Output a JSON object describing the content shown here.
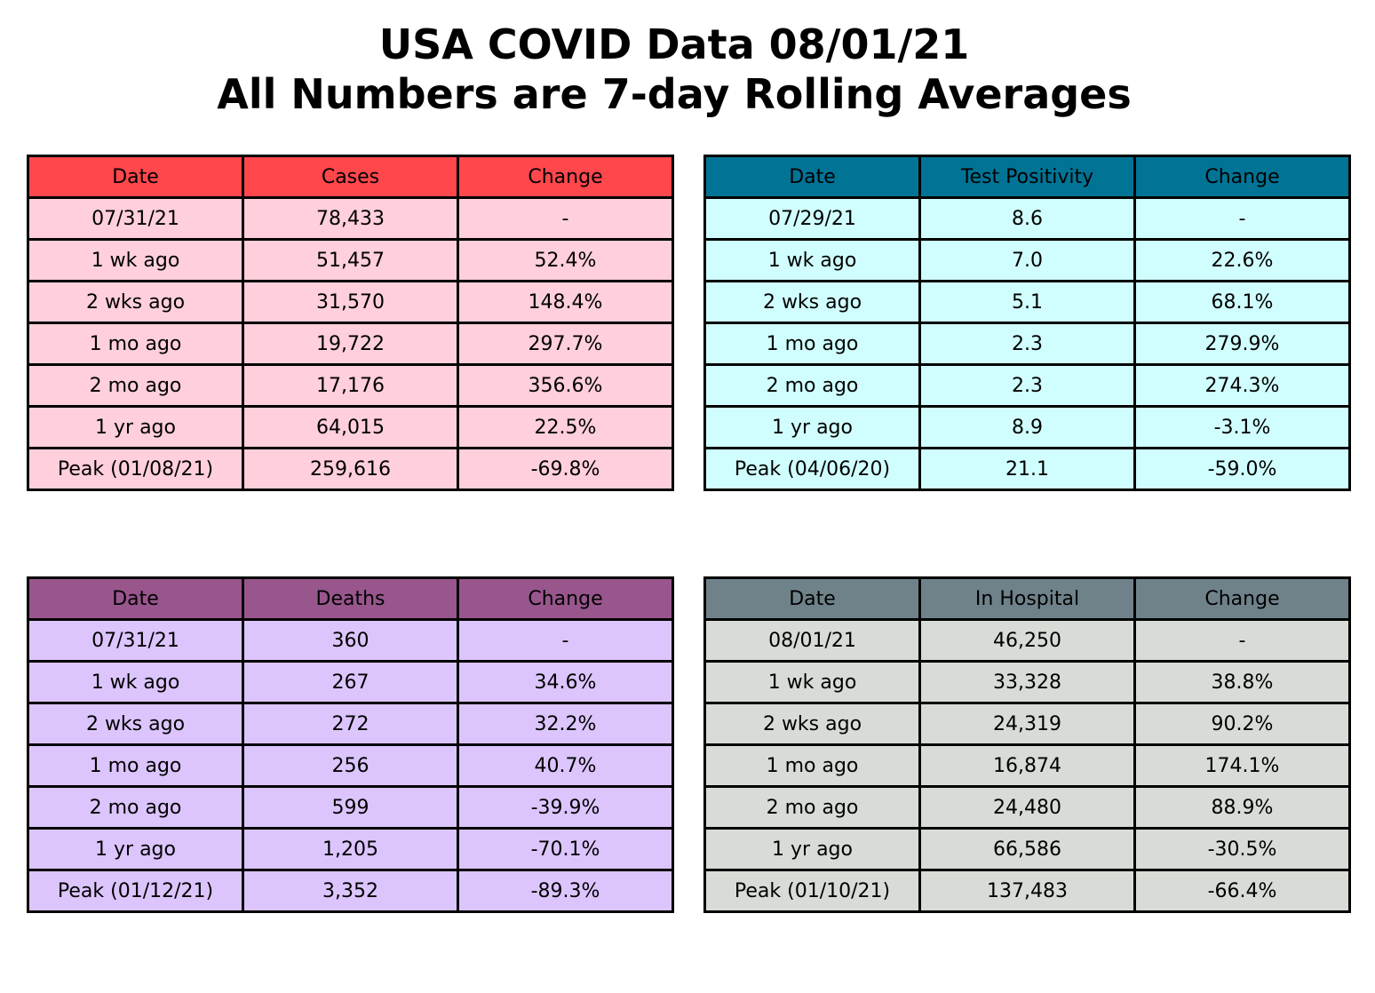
{
  "title_line1": "USA COVID Data 08/01/21",
  "title_line2": "All Numbers are 7-day Rolling Averages",
  "chart_data": [
    {
      "type": "table",
      "id": "cases",
      "header_color": "#ff474c",
      "row_color": "#ffcfdc",
      "columns": [
        "Date",
        "Cases",
        "Change"
      ],
      "rows": [
        [
          "07/31/21",
          "78,433",
          "-"
        ],
        [
          "1 wk ago",
          "51,457",
          "52.4%"
        ],
        [
          "2 wks ago",
          "31,570",
          "148.4%"
        ],
        [
          "1 mo ago",
          "19,722",
          "297.7%"
        ],
        [
          "2 mo ago",
          "17,176",
          "356.6%"
        ],
        [
          "1 yr ago",
          "64,015",
          "22.5%"
        ],
        [
          "Peak (01/08/21)",
          "259,616",
          "-69.8%"
        ]
      ]
    },
    {
      "type": "table",
      "id": "tests",
      "header_color": "#017496",
      "row_color": "#d0fefe",
      "columns": [
        "Date",
        "Test Positivity",
        "Change"
      ],
      "rows": [
        [
          "07/29/21",
          "8.6",
          "-"
        ],
        [
          "1 wk ago",
          "7.0",
          "22.6%"
        ],
        [
          "2 wks ago",
          "5.1",
          "68.1%"
        ],
        [
          "1 mo ago",
          "2.3",
          "279.9%"
        ],
        [
          "2 mo ago",
          "2.3",
          "274.3%"
        ],
        [
          "1 yr ago",
          "8.9",
          "-3.1%"
        ],
        [
          "Peak (04/06/20)",
          "21.1",
          "-59.0%"
        ]
      ]
    },
    {
      "type": "table",
      "id": "deaths",
      "header_color": "#98568d",
      "row_color": "#dcc5fd",
      "columns": [
        "Date",
        "Deaths",
        "Change"
      ],
      "rows": [
        [
          "07/31/21",
          "360",
          "-"
        ],
        [
          "1 wk ago",
          "267",
          "34.6%"
        ],
        [
          "2 wks ago",
          "272",
          "32.2%"
        ],
        [
          "1 mo ago",
          "256",
          "40.7%"
        ],
        [
          "2 mo ago",
          "599",
          "-39.9%"
        ],
        [
          "1 yr ago",
          "1,205",
          "-70.1%"
        ],
        [
          "Peak (01/12/21)",
          "3,352",
          "-89.3%"
        ]
      ]
    },
    {
      "type": "table",
      "id": "hosp",
      "header_color": "#6f828a",
      "row_color": "#d8dcd6",
      "columns": [
        "Date",
        "In Hospital",
        "Change"
      ],
      "rows": [
        [
          "08/01/21",
          "46,250",
          "-"
        ],
        [
          "1 wk ago",
          "33,328",
          "38.8%"
        ],
        [
          "2 wks ago",
          "24,319",
          "90.2%"
        ],
        [
          "1 mo ago",
          "16,874",
          "174.1%"
        ],
        [
          "2 mo ago",
          "24,480",
          "88.9%"
        ],
        [
          "1 yr ago",
          "66,586",
          "-30.5%"
        ],
        [
          "Peak (01/10/21)",
          "137,483",
          "-66.4%"
        ]
      ]
    }
  ]
}
